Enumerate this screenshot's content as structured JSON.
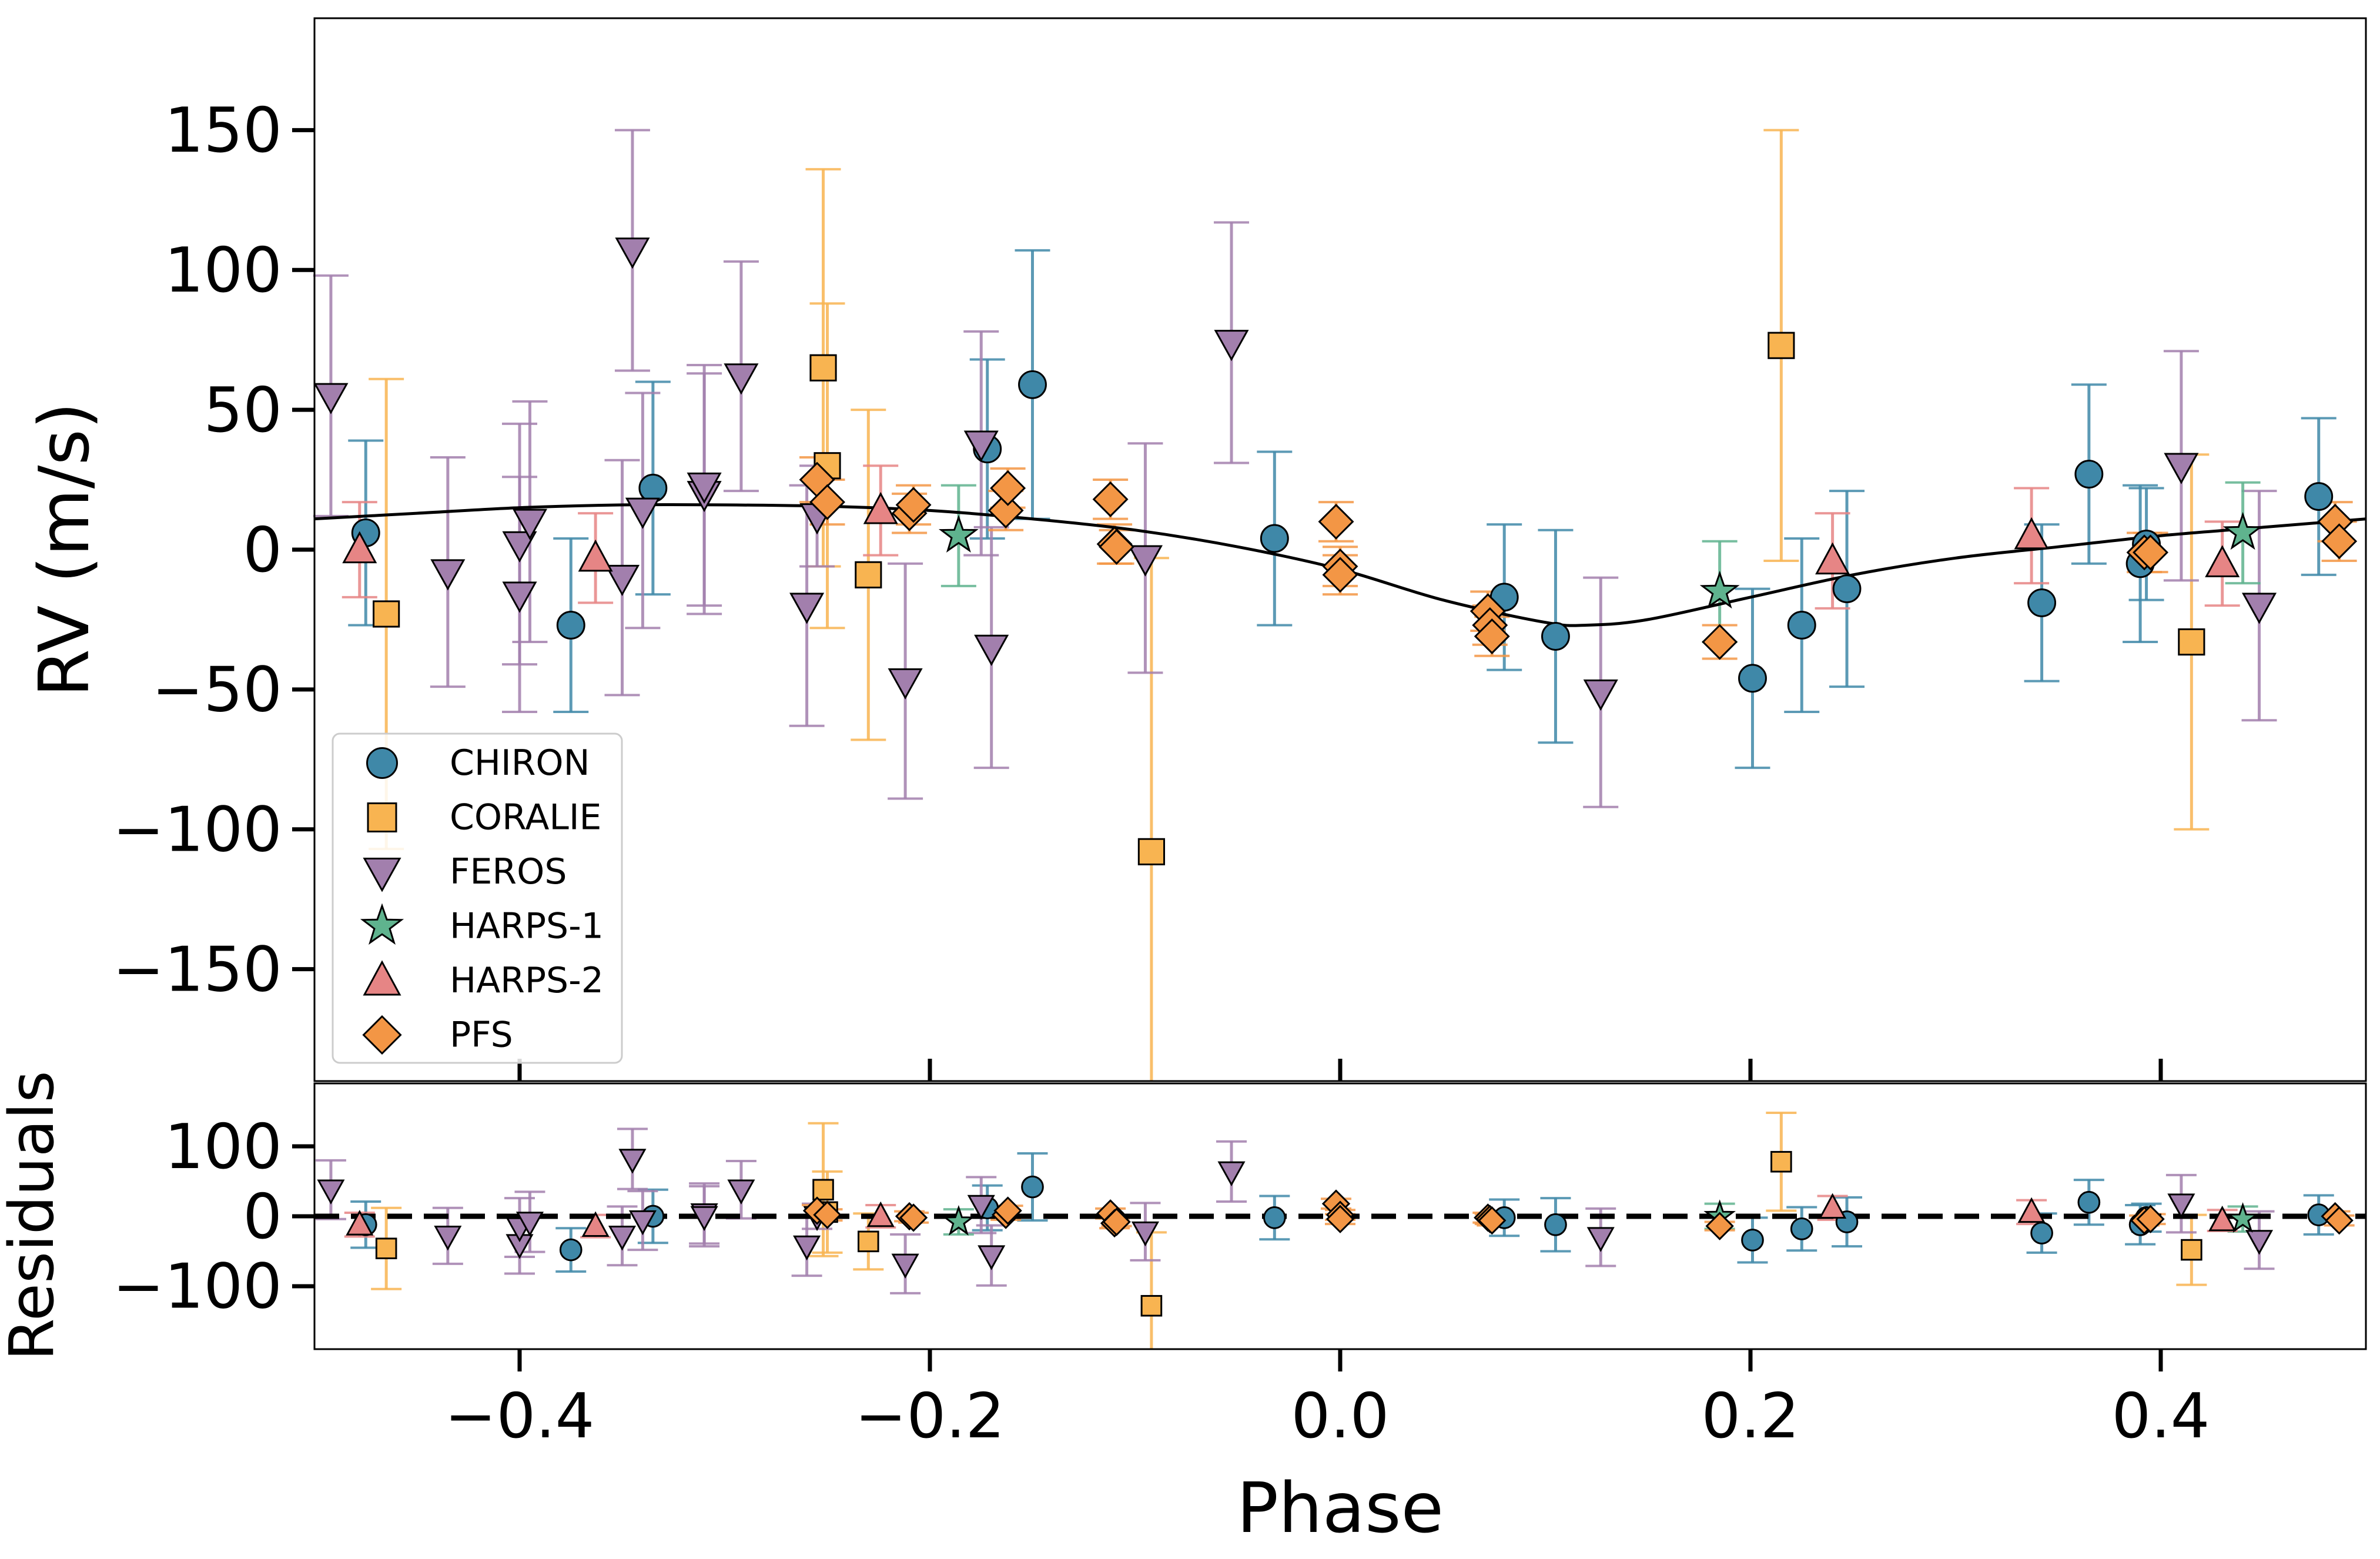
{
  "chart_data": {
    "type": "scatter",
    "title": "",
    "xlabel": "Phase",
    "xlim": [
      -0.5,
      0.5
    ],
    "xticks": [
      -0.4,
      -0.2,
      0.0,
      0.2,
      0.4
    ],
    "xtick_labels": [
      "−0.4",
      "−0.2",
      "0.0",
      "0.2",
      "0.4"
    ],
    "colors": {
      "CHIRON": "#3f88a8",
      "CORALIE": "#f8b451",
      "FEROS": "#a27fad",
      "HARPS-1": "#5fb38e",
      "HARPS-2": "#e68585",
      "PFS": "#f39645"
    },
    "panels": {
      "top": {
        "ylabel": "RV (m/s)",
        "ylim": [
          -190,
          190
        ],
        "yticks": [
          150,
          100,
          50,
          0,
          -50,
          -100,
          -150
        ],
        "ytick_labels": [
          "150",
          "100",
          "50",
          "0",
          "−50",
          "−100",
          "−150"
        ],
        "model": {
          "x": [
            -0.5,
            -0.45,
            -0.4,
            -0.35,
            -0.3,
            -0.25,
            -0.2,
            -0.15,
            -0.1,
            -0.05,
            0.0,
            0.05,
            0.1,
            0.12,
            0.15,
            0.2,
            0.25,
            0.3,
            0.35,
            0.4,
            0.45,
            0.5
          ],
          "y": [
            11,
            13,
            15,
            16,
            16,
            15.5,
            14,
            11,
            7,
            1,
            -7,
            -18,
            -26,
            -27,
            -25,
            -17,
            -9,
            -3,
            1,
            5,
            8,
            11
          ]
        },
        "series": [
          {
            "name": "CHIRON",
            "marker": "circle",
            "points": [
              [
                -0.475,
                6,
                33
              ],
              [
                -0.375,
                -27,
                31
              ],
              [
                -0.335,
                22,
                38
              ],
              [
                -0.172,
                36,
                32
              ],
              [
                -0.15,
                59,
                48
              ],
              [
                -0.032,
                4,
                31
              ],
              [
                0.08,
                -17,
                26
              ],
              [
                0.105,
                -31,
                38
              ],
              [
                0.201,
                -46,
                32
              ],
              [
                0.225,
                -27,
                31
              ],
              [
                0.247,
                -14,
                35
              ],
              [
                0.342,
                -19,
                28
              ],
              [
                0.365,
                27,
                32
              ],
              [
                0.39,
                -5,
                28
              ],
              [
                0.393,
                2,
                20
              ],
              [
                0.477,
                19,
                28
              ]
            ]
          },
          {
            "name": "CORALIE",
            "marker": "square",
            "points": [
              [
                -0.465,
                -23,
                84
              ],
              [
                -0.252,
                65,
                71
              ],
              [
                -0.25,
                30,
                58
              ],
              [
                -0.23,
                -9,
                59
              ],
              [
                -0.092,
                -108,
                105
              ],
              [
                0.215,
                73,
                77
              ],
              [
                0.415,
                -33,
                67
              ]
            ]
          },
          {
            "name": "FEROS",
            "marker": "tri-down",
            "points": [
              [
                -0.492,
                55,
                43
              ],
              [
                -0.435,
                -8,
                41
              ],
              [
                -0.4,
                2,
                43
              ],
              [
                -0.4,
                -16,
                42
              ],
              [
                -0.395,
                10,
                43
              ],
              [
                -0.35,
                -10,
                42
              ],
              [
                -0.345,
                107,
                43
              ],
              [
                -0.34,
                14,
                42
              ],
              [
                -0.31,
                20,
                43
              ],
              [
                -0.31,
                23,
                43
              ],
              [
                -0.292,
                62,
                41
              ],
              [
                -0.26,
                -20,
                43
              ],
              [
                -0.255,
                12,
                18
              ],
              [
                -0.212,
                -47,
                42
              ],
              [
                -0.175,
                38,
                40
              ],
              [
                -0.17,
                -35,
                43
              ],
              [
                -0.095,
                -3,
                41
              ],
              [
                -0.053,
                74,
                43
              ],
              [
                0.127,
                -51,
                41
              ],
              [
                0.41,
                30,
                41
              ],
              [
                0.448,
                -20,
                41
              ]
            ]
          },
          {
            "name": "HARPS-1",
            "marker": "star",
            "points": [
              [
                -0.186,
                5,
                18
              ],
              [
                0.185,
                -15,
                18
              ],
              [
                0.44,
                6,
                18
              ]
            ]
          },
          {
            "name": "HARPS-2",
            "marker": "tri-up",
            "points": [
              [
                -0.478,
                0,
                17
              ],
              [
                -0.363,
                -3,
                16
              ],
              [
                -0.224,
                14,
                16
              ],
              [
                0.24,
                -4,
                17
              ],
              [
                0.337,
                5,
                17
              ],
              [
                0.43,
                -5,
                15
              ]
            ]
          },
          {
            "name": "PFS",
            "marker": "diamond",
            "points": [
              [
                -0.255,
                25,
                8
              ],
              [
                -0.25,
                17,
                8
              ],
              [
                -0.21,
                13,
                7
              ],
              [
                -0.208,
                16,
                7
              ],
              [
                -0.163,
                14,
                7
              ],
              [
                -0.162,
                22,
                7
              ],
              [
                -0.112,
                18,
                7
              ],
              [
                -0.11,
                2,
                7
              ],
              [
                -0.109,
                1,
                6
              ],
              [
                -0.002,
                10,
                7
              ],
              [
                0.0,
                -6,
                7
              ],
              [
                0.0,
                -9,
                7
              ],
              [
                0.072,
                -22,
                7
              ],
              [
                0.073,
                -27,
                7
              ],
              [
                0.074,
                -31,
                7
              ],
              [
                0.185,
                -33,
                6
              ],
              [
                0.392,
                -1,
                7
              ],
              [
                0.395,
                -1,
                7
              ],
              [
                0.485,
                10,
                7
              ],
              [
                0.487,
                3,
                7
              ]
            ]
          }
        ]
      },
      "bottom": {
        "ylabel": "Residuals",
        "ylim": [
          -190,
          190
        ],
        "yticks": [
          100,
          0,
          -100
        ],
        "ytick_labels": [
          "100",
          "0",
          "−100"
        ],
        "zero_line": 0,
        "series": [
          {
            "name": "CHIRON",
            "marker": "circle",
            "points": [
              [
                -0.475,
                -12,
                33
              ],
              [
                -0.375,
                -48,
                31
              ],
              [
                -0.335,
                0,
                38
              ],
              [
                -0.172,
                12,
                32
              ],
              [
                -0.15,
                42,
                48
              ],
              [
                -0.032,
                -2,
                31
              ],
              [
                0.08,
                -2,
                26
              ],
              [
                0.105,
                -12,
                38
              ],
              [
                0.201,
                -34,
                32
              ],
              [
                0.225,
                -18,
                31
              ],
              [
                0.247,
                -8,
                35
              ],
              [
                0.342,
                -24,
                28
              ],
              [
                0.365,
                20,
                32
              ],
              [
                0.39,
                -12,
                28
              ],
              [
                0.393,
                -2,
                20
              ],
              [
                0.477,
                2,
                28
              ]
            ]
          },
          {
            "name": "CORALIE",
            "marker": "square",
            "points": [
              [
                -0.465,
                -46,
                58
              ],
              [
                -0.252,
                38,
                95
              ],
              [
                -0.25,
                6,
                58
              ],
              [
                -0.23,
                -36,
                40
              ],
              [
                -0.092,
                -128,
                105
              ],
              [
                0.215,
                78,
                70
              ],
              [
                0.415,
                -48,
                50
              ]
            ]
          },
          {
            "name": "FEROS",
            "marker": "tri-down",
            "points": [
              [
                -0.492,
                38,
                42
              ],
              [
                -0.435,
                -28,
                40
              ],
              [
                -0.4,
                -40,
                42
              ],
              [
                -0.4,
                -16,
                42
              ],
              [
                -0.395,
                -8,
                43
              ],
              [
                -0.35,
                -28,
                42
              ],
              [
                -0.345,
                82,
                43
              ],
              [
                -0.34,
                -6,
                42
              ],
              [
                -0.31,
                4,
                43
              ],
              [
                -0.31,
                0,
                43
              ],
              [
                -0.292,
                38,
                41
              ],
              [
                -0.26,
                -42,
                43
              ],
              [
                -0.255,
                0,
                18
              ],
              [
                -0.212,
                -68,
                42
              ],
              [
                -0.175,
                16,
                40
              ],
              [
                -0.17,
                -56,
                43
              ],
              [
                -0.095,
                -22,
                41
              ],
              [
                -0.053,
                64,
                43
              ],
              [
                0.127,
                -30,
                41
              ],
              [
                0.41,
                18,
                41
              ],
              [
                0.448,
                -34,
                41
              ]
            ]
          },
          {
            "name": "HARPS-1",
            "marker": "star",
            "points": [
              [
                -0.186,
                -8,
                18
              ],
              [
                0.185,
                0,
                18
              ],
              [
                0.44,
                -4,
                18
              ]
            ]
          },
          {
            "name": "HARPS-2",
            "marker": "tri-up",
            "points": [
              [
                -0.478,
                -12,
                17
              ],
              [
                -0.363,
                -14,
                16
              ],
              [
                -0.224,
                0,
                16
              ],
              [
                0.24,
                12,
                17
              ],
              [
                0.337,
                6,
                17
              ],
              [
                0.43,
                -6,
                15
              ]
            ]
          },
          {
            "name": "PFS",
            "marker": "diamond",
            "points": [
              [
                -0.255,
                8,
                8
              ],
              [
                -0.25,
                2,
                8
              ],
              [
                -0.21,
                0,
                7
              ],
              [
                -0.208,
                -2,
                7
              ],
              [
                -0.163,
                2,
                7
              ],
              [
                -0.162,
                8,
                7
              ],
              [
                -0.112,
                4,
                7
              ],
              [
                -0.11,
                -10,
                7
              ],
              [
                -0.109,
                -8,
                6
              ],
              [
                -0.002,
                18,
                7
              ],
              [
                0.0,
                2,
                7
              ],
              [
                0.0,
                -4,
                7
              ],
              [
                0.072,
                -2,
                7
              ],
              [
                0.073,
                -4,
                7
              ],
              [
                0.074,
                -6,
                7
              ],
              [
                0.185,
                -14,
                6
              ],
              [
                0.392,
                -6,
                7
              ],
              [
                0.395,
                -4,
                7
              ],
              [
                0.485,
                0,
                7
              ],
              [
                0.487,
                -6,
                7
              ]
            ]
          }
        ]
      }
    },
    "legend": {
      "position": "lower-left",
      "entries": [
        "CHIRON",
        "CORALIE",
        "FEROS",
        "HARPS-1",
        "HARPS-2",
        "PFS"
      ]
    }
  }
}
